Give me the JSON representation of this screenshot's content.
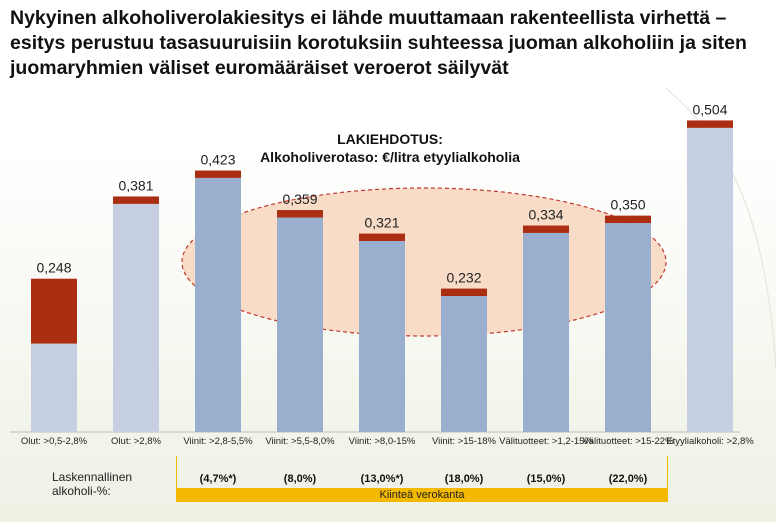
{
  "page": {
    "title": "Nykyinen alkoholiverolakiesitys ei lähde muuttamaan rakenteellista virhettä – esitys perustuu tasasuuruisiin korotuksiin suhteessa juoman alkoholiin ja siten juomaryhmien väliset euromääräiset veroerot säilyvät"
  },
  "chart_data": {
    "type": "bar",
    "title_line1": "LAKIEHDOTUS:",
    "title_line2": "Alkoholiverotaso: €/litra etyylialkoholia",
    "categories": [
      "Olut: >0,5-2,8%",
      "Olut: >2,8%",
      "Viinit: >2,8-5,5%",
      "Viinit: >5,5-8,0%",
      "Viinit: >8,0-15%",
      "Viinit: >15-18%",
      "Välituotteet: >1,2-15%",
      "Välituotteet: >15-22%",
      "Etyylialkoholi: >2,8%"
    ],
    "totals": [
      0.248,
      0.381,
      0.423,
      0.359,
      0.321,
      0.232,
      0.334,
      0.35,
      0.504
    ],
    "total_labels": [
      "0,248",
      "0,381",
      "0,423",
      "0,359",
      "0,321",
      "0,232",
      "0,334",
      "0,350",
      "0,504"
    ],
    "increase": [
      0.105,
      0.012,
      0.012,
      0.012,
      0.012,
      0.012,
      0.012,
      0.012,
      0.012
    ],
    "ylim": [
      0,
      0.55
    ],
    "colors": {
      "base_light": "#c5cfe1",
      "base_medium": "#9aaecd",
      "increase": "#ab2e13",
      "ellipse_fill": "#f8dcc8",
      "ellipse_stroke": "#c0392b"
    },
    "medium_shade_indices": [
      2,
      3,
      4,
      5,
      6,
      7
    ],
    "alcohol_row": {
      "label": "Laskennallinen alkoholi-%:",
      "values": [
        "(4,7%*)",
        "(8,0%)",
        "(13,0%*)",
        "(18,0%)",
        "(15,0%)",
        "(22,0%)"
      ],
      "column_indices": [
        2,
        3,
        4,
        5,
        6,
        7
      ]
    },
    "fixed_rate_label": "Kiinteä verokanta"
  }
}
